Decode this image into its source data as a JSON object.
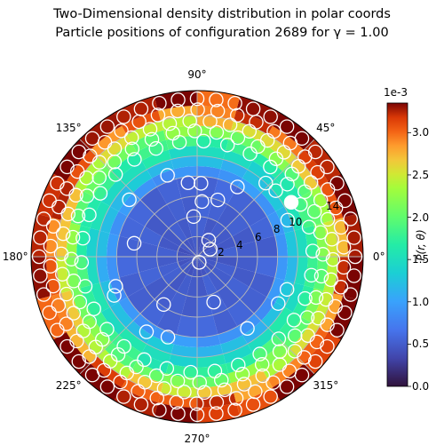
{
  "title_line1": "Two-Dimensional density distribution in polar coords",
  "title_line2": "Particle positions of configuration 2689 for γ = 1.00",
  "colors": {
    "inner_mean": "#3b5cd6",
    "particle_edge": "#ffffff",
    "grid": "#b8b8b8"
  },
  "chart_data": {
    "type": "heatmap",
    "projection": "polar",
    "title": "Two-Dimensional density distribution in polar coords\nParticle positions of configuration 2689 for γ = 1.00",
    "angle_ticks": [
      "0°",
      "45°",
      "90°",
      "135°",
      "180°",
      "225°",
      "270°",
      "315°"
    ],
    "angle_tick_degrees": [
      0,
      45,
      90,
      135,
      180,
      225,
      270,
      315
    ],
    "r_ticks": [
      2,
      4,
      6,
      8,
      10,
      14
    ],
    "r_max": 16.5,
    "grid": true,
    "colorbar": {
      "label": "P(r, θ)",
      "exponent_label": "1e-3",
      "ticks": [
        "0.0",
        "0.5",
        "1.0",
        "1.5",
        "2.0",
        "2.5",
        "3.0"
      ],
      "tick_values": [
        0.0,
        0.5,
        1.0,
        1.5,
        2.0,
        2.5,
        3.0
      ],
      "vmin": 0.0,
      "vmax": 3.35,
      "colormap": "turbo"
    },
    "radial_profile": {
      "r_edges": [
        0,
        2,
        4,
        6,
        8,
        9,
        10,
        11,
        12,
        13,
        14,
        15,
        16.5
      ],
      "mean_density": [
        0.45,
        0.5,
        0.52,
        0.55,
        0.9,
        1.2,
        1.5,
        1.75,
        2.1,
        2.55,
        3.0,
        3.3
      ]
    },
    "particles": {
      "shells": [
        {
          "r": 15.7,
          "count": 52
        },
        {
          "r": 14.6,
          "count": 46
        },
        {
          "r": 13.5,
          "count": 42
        },
        {
          "r": 12.5,
          "count": 36
        },
        {
          "r": 11.5,
          "count": 30
        }
      ],
      "inner": [
        {
          "r": 10.2,
          "theta": 40
        },
        {
          "r": 10.0,
          "theta": 47
        },
        {
          "r": 9.7,
          "theta": 22
        },
        {
          "r": 9.5,
          "theta": 340
        },
        {
          "r": 9.3,
          "theta": 330
        },
        {
          "r": 8.7,
          "theta": 305
        },
        {
          "r": 8.6,
          "theta": 110
        },
        {
          "r": 8.5,
          "theta": 250
        },
        {
          "r": 8.8,
          "theta": 140
        },
        {
          "r": 9.1,
          "theta": 205
        },
        {
          "r": 8.0,
          "theta": 60
        },
        {
          "r": 7.4,
          "theta": 97
        },
        {
          "r": 7.3,
          "theta": 87
        },
        {
          "r": 6.0,
          "theta": 70
        },
        {
          "r": 5.5,
          "theta": 85
        },
        {
          "r": 4.0,
          "theta": 95
        },
        {
          "r": 4.8,
          "theta": 290
        },
        {
          "r": 5.8,
          "theta": 235
        },
        {
          "r": 6.4,
          "theta": 168
        },
        {
          "r": 2.0,
          "theta": 55
        },
        {
          "r": 1.5,
          "theta": 30
        },
        {
          "r": 0.6,
          "theta": 290
        },
        {
          "r": 8.6,
          "theta": 200
        },
        {
          "r": 9.0,
          "theta": 236
        }
      ]
    }
  }
}
